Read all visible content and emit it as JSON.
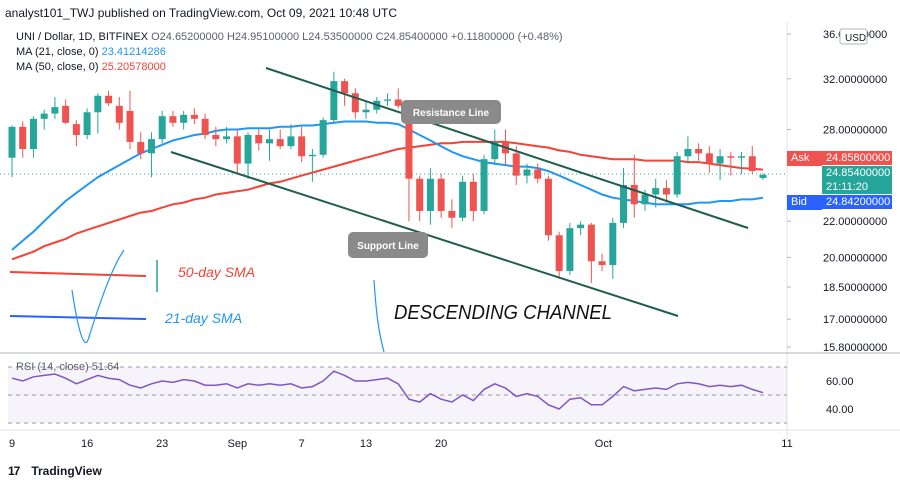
{
  "header": {
    "published": "analyst101_TWJ published on TradingView.com, Oct 09, 2021 10:48 UTC",
    "symbol_line": "UNI / Dollar, 1D, BITFINEX",
    "ohlc": "O24.65200000 H24.95100000 L24.53500000 C24.85400000 +0.11800000 (+0.48%)",
    "ma21_label": "MA (21, close, 0)",
    "ma21_value": "23.41214286",
    "ma50_label": "MA (50, close, 0)",
    "ma50_value": "25.20578000"
  },
  "price_scale": {
    "currency": "USD",
    "ticks": [
      "36.00000000",
      "32.00000000",
      "28.00000000",
      "24.85400000",
      "22.00000000",
      "20.00000000",
      "18.50000000",
      "17.00000000",
      "15.80000000"
    ],
    "ask_label": "Ask",
    "ask_value": "24.85800000",
    "last_value": "24.85400000",
    "countdown": "21:11:20",
    "bid_label": "Bid",
    "bid_value": "24.84200000"
  },
  "rsi_panel": {
    "label": "RSI (14, close) 51.64",
    "ticks": [
      "60.00",
      "40.00"
    ]
  },
  "time_axis": [
    "9",
    "16",
    "23",
    "Sep",
    "7",
    "13",
    "20",
    "Oct",
    "11"
  ],
  "annotations": {
    "resistance": "Resistance Line",
    "support": "Support Line",
    "channel": "DESCENDING CHANNEL",
    "sma50": "50-day SMA",
    "sma21": "21-day SMA"
  },
  "footer": {
    "brand": "TradingView"
  },
  "colors": {
    "up": "#26a69a",
    "down": "#ef5350",
    "ma21": "#2196f3",
    "ma50": "#f44336",
    "trendline": "#1e5e4e",
    "rsi": "#7e57c2",
    "bid": "#2962ff"
  },
  "chart_data": {
    "type": "candlestick",
    "title": "UNI / Dollar, 1D, BITFINEX",
    "x_labels": [
      "9",
      "16",
      "23",
      "Sep",
      "7",
      "13",
      "20",
      "Oct",
      "11"
    ],
    "ylim": [
      15.8,
      36
    ],
    "scale": "log",
    "candles": [
      {
        "o": 26.0,
        "h": 28.3,
        "l": 24.7,
        "c": 28.2
      },
      {
        "o": 28.2,
        "h": 28.6,
        "l": 26.0,
        "c": 26.6
      },
      {
        "o": 26.6,
        "h": 29.0,
        "l": 26.0,
        "c": 28.8
      },
      {
        "o": 28.8,
        "h": 29.5,
        "l": 28.0,
        "c": 29.2
      },
      {
        "o": 29.2,
        "h": 30.5,
        "l": 28.8,
        "c": 29.7
      },
      {
        "o": 29.8,
        "h": 30.3,
        "l": 28.4,
        "c": 28.5
      },
      {
        "o": 28.4,
        "h": 28.7,
        "l": 26.8,
        "c": 27.6
      },
      {
        "o": 27.6,
        "h": 29.6,
        "l": 27.3,
        "c": 29.3
      },
      {
        "o": 29.3,
        "h": 30.8,
        "l": 27.7,
        "c": 30.6
      },
      {
        "o": 30.6,
        "h": 31.0,
        "l": 29.8,
        "c": 30.0
      },
      {
        "o": 29.8,
        "h": 30.5,
        "l": 28.0,
        "c": 28.5
      },
      {
        "o": 29.4,
        "h": 31.0,
        "l": 26.6,
        "c": 27.1
      },
      {
        "o": 27.1,
        "h": 27.8,
        "l": 25.9,
        "c": 26.3
      },
      {
        "o": 26.3,
        "h": 27.8,
        "l": 24.7,
        "c": 27.3
      },
      {
        "o": 27.3,
        "h": 29.4,
        "l": 27.0,
        "c": 29.0
      },
      {
        "o": 29.0,
        "h": 29.4,
        "l": 28.2,
        "c": 28.5
      },
      {
        "o": 28.5,
        "h": 29.4,
        "l": 28.0,
        "c": 29.1
      },
      {
        "o": 29.1,
        "h": 29.6,
        "l": 28.4,
        "c": 28.8
      },
      {
        "o": 28.8,
        "h": 29.2,
        "l": 27.3,
        "c": 27.6
      },
      {
        "o": 27.6,
        "h": 28.2,
        "l": 26.8,
        "c": 27.3
      },
      {
        "o": 27.3,
        "h": 28.2,
        "l": 27.0,
        "c": 27.5
      },
      {
        "o": 27.5,
        "h": 28.0,
        "l": 25.0,
        "c": 25.6
      },
      {
        "o": 25.6,
        "h": 27.8,
        "l": 24.6,
        "c": 27.6
      },
      {
        "o": 27.6,
        "h": 28.0,
        "l": 26.5,
        "c": 27.0
      },
      {
        "o": 27.0,
        "h": 28.0,
        "l": 25.8,
        "c": 27.3
      },
      {
        "o": 27.3,
        "h": 28.0,
        "l": 26.6,
        "c": 26.8
      },
      {
        "o": 26.8,
        "h": 28.4,
        "l": 26.6,
        "c": 27.5
      },
      {
        "o": 27.5,
        "h": 28.2,
        "l": 25.7,
        "c": 26.1
      },
      {
        "o": 26.1,
        "h": 26.6,
        "l": 24.4,
        "c": 26.2
      },
      {
        "o": 26.2,
        "h": 28.9,
        "l": 26.0,
        "c": 28.7
      },
      {
        "o": 28.7,
        "h": 32.6,
        "l": 28.5,
        "c": 31.8
      },
      {
        "o": 31.8,
        "h": 32.0,
        "l": 29.8,
        "c": 30.8
      },
      {
        "o": 30.8,
        "h": 31.2,
        "l": 28.8,
        "c": 29.3
      },
      {
        "o": 29.3,
        "h": 30.2,
        "l": 28.8,
        "c": 29.5
      },
      {
        "o": 29.5,
        "h": 30.5,
        "l": 29.2,
        "c": 30.2
      },
      {
        "o": 30.2,
        "h": 30.8,
        "l": 29.8,
        "c": 30.3
      },
      {
        "o": 30.3,
        "h": 31.2,
        "l": 29.6,
        "c": 29.8
      },
      {
        "o": 29.9,
        "h": 30.2,
        "l": 22.0,
        "c": 24.6
      },
      {
        "o": 24.6,
        "h": 24.8,
        "l": 22.0,
        "c": 22.6
      },
      {
        "o": 22.6,
        "h": 25.3,
        "l": 21.8,
        "c": 24.6
      },
      {
        "o": 24.6,
        "h": 24.9,
        "l": 22.2,
        "c": 22.6
      },
      {
        "o": 22.6,
        "h": 23.3,
        "l": 21.6,
        "c": 22.2
      },
      {
        "o": 22.2,
        "h": 24.8,
        "l": 22.0,
        "c": 24.4
      },
      {
        "o": 24.4,
        "h": 24.9,
        "l": 22.0,
        "c": 22.6
      },
      {
        "o": 22.6,
        "h": 26.2,
        "l": 22.4,
        "c": 25.9
      },
      {
        "o": 25.9,
        "h": 28.0,
        "l": 25.5,
        "c": 27.1
      },
      {
        "o": 27.1,
        "h": 28.0,
        "l": 25.5,
        "c": 26.3
      },
      {
        "o": 26.3,
        "h": 26.8,
        "l": 24.2,
        "c": 24.8
      },
      {
        "o": 24.8,
        "h": 25.6,
        "l": 24.3,
        "c": 25.2
      },
      {
        "o": 25.2,
        "h": 25.6,
        "l": 24.3,
        "c": 24.6
      },
      {
        "o": 24.6,
        "h": 24.8,
        "l": 20.9,
        "c": 21.2
      },
      {
        "o": 21.2,
        "h": 21.4,
        "l": 18.9,
        "c": 19.3
      },
      {
        "o": 19.3,
        "h": 21.9,
        "l": 19.1,
        "c": 21.6
      },
      {
        "o": 21.6,
        "h": 22.0,
        "l": 21.2,
        "c": 21.8
      },
      {
        "o": 21.8,
        "h": 21.9,
        "l": 18.7,
        "c": 19.8
      },
      {
        "o": 19.8,
        "h": 20.2,
        "l": 19.3,
        "c": 19.6
      },
      {
        "o": 19.6,
        "h": 22.2,
        "l": 18.9,
        "c": 21.9
      },
      {
        "o": 21.9,
        "h": 25.3,
        "l": 21.6,
        "c": 24.2
      },
      {
        "o": 24.2,
        "h": 26.2,
        "l": 22.2,
        "c": 23.0
      },
      {
        "o": 23.0,
        "h": 23.9,
        "l": 22.6,
        "c": 23.6
      },
      {
        "o": 23.6,
        "h": 24.6,
        "l": 22.8,
        "c": 24.0
      },
      {
        "o": 24.0,
        "h": 24.5,
        "l": 23.1,
        "c": 23.6
      },
      {
        "o": 23.6,
        "h": 26.4,
        "l": 23.4,
        "c": 26.1
      },
      {
        "o": 26.1,
        "h": 27.5,
        "l": 25.6,
        "c": 26.6
      },
      {
        "o": 26.6,
        "h": 27.0,
        "l": 25.8,
        "c": 26.3
      },
      {
        "o": 26.3,
        "h": 26.8,
        "l": 25.0,
        "c": 25.6
      },
      {
        "o": 25.6,
        "h": 26.6,
        "l": 24.5,
        "c": 26.1
      },
      {
        "o": 26.1,
        "h": 26.4,
        "l": 24.8,
        "c": 26.0
      },
      {
        "o": 26.0,
        "h": 26.4,
        "l": 24.9,
        "c": 26.1
      },
      {
        "o": 26.1,
        "h": 26.8,
        "l": 24.9,
        "c": 25.1
      },
      {
        "o": 24.65,
        "h": 24.95,
        "l": 24.535,
        "c": 24.854
      }
    ],
    "ma21": [
      20.4,
      20.9,
      21.4,
      22.0,
      22.6,
      23.2,
      23.7,
      24.2,
      24.7,
      25.1,
      25.5,
      25.9,
      26.3,
      26.6,
      26.9,
      27.2,
      27.4,
      27.6,
      27.7,
      27.9,
      28.0,
      28.0,
      28.1,
      28.1,
      28.1,
      28.2,
      28.2,
      28.3,
      28.3,
      28.4,
      28.5,
      28.6,
      28.6,
      28.6,
      28.5,
      28.5,
      28.4,
      28.0,
      27.6,
      27.2,
      26.8,
      26.4,
      26.1,
      25.9,
      25.7,
      25.6,
      25.5,
      25.4,
      25.4,
      25.3,
      25.1,
      24.8,
      24.5,
      24.2,
      23.9,
      23.6,
      23.4,
      23.3,
      23.2,
      23.1,
      23.0,
      23.0,
      23.0,
      23.0,
      23.1,
      23.1,
      23.2,
      23.2,
      23.3,
      23.3,
      23.4
    ],
    "ma50": [
      19.9,
      20.1,
      20.3,
      20.6,
      20.8,
      21.0,
      21.3,
      21.5,
      21.7,
      21.9,
      22.1,
      22.3,
      22.5,
      22.6,
      22.8,
      23.0,
      23.1,
      23.3,
      23.4,
      23.6,
      23.7,
      23.8,
      23.9,
      24.1,
      24.3,
      24.4,
      24.6,
      24.8,
      25.0,
      25.2,
      25.4,
      25.6,
      25.8,
      26.0,
      26.2,
      26.4,
      26.6,
      26.7,
      26.8,
      26.9,
      27.0,
      27.0,
      27.1,
      27.1,
      27.1,
      27.1,
      27.1,
      27.0,
      26.9,
      26.8,
      26.7,
      26.5,
      26.4,
      26.2,
      26.1,
      26.0,
      25.9,
      25.9,
      25.9,
      25.8,
      25.8,
      25.8,
      25.8,
      25.7,
      25.7,
      25.6,
      25.5,
      25.4,
      25.3,
      25.25,
      25.2
    ],
    "rsi": [
      62,
      60,
      63,
      64,
      65,
      62,
      58,
      61,
      64,
      62,
      61,
      57,
      55,
      58,
      60,
      59,
      61,
      60,
      57,
      57,
      58,
      55,
      58,
      57,
      58,
      57,
      58,
      55,
      56,
      60,
      67,
      64,
      60,
      60,
      61,
      62,
      58,
      47,
      45,
      51,
      47,
      45,
      50,
      46,
      54,
      58,
      55,
      49,
      51,
      49,
      43,
      40,
      47,
      48,
      43,
      43,
      49,
      56,
      53,
      54,
      55,
      54,
      58,
      59,
      58,
      56,
      57,
      56,
      57,
      54,
      51.64
    ]
  }
}
